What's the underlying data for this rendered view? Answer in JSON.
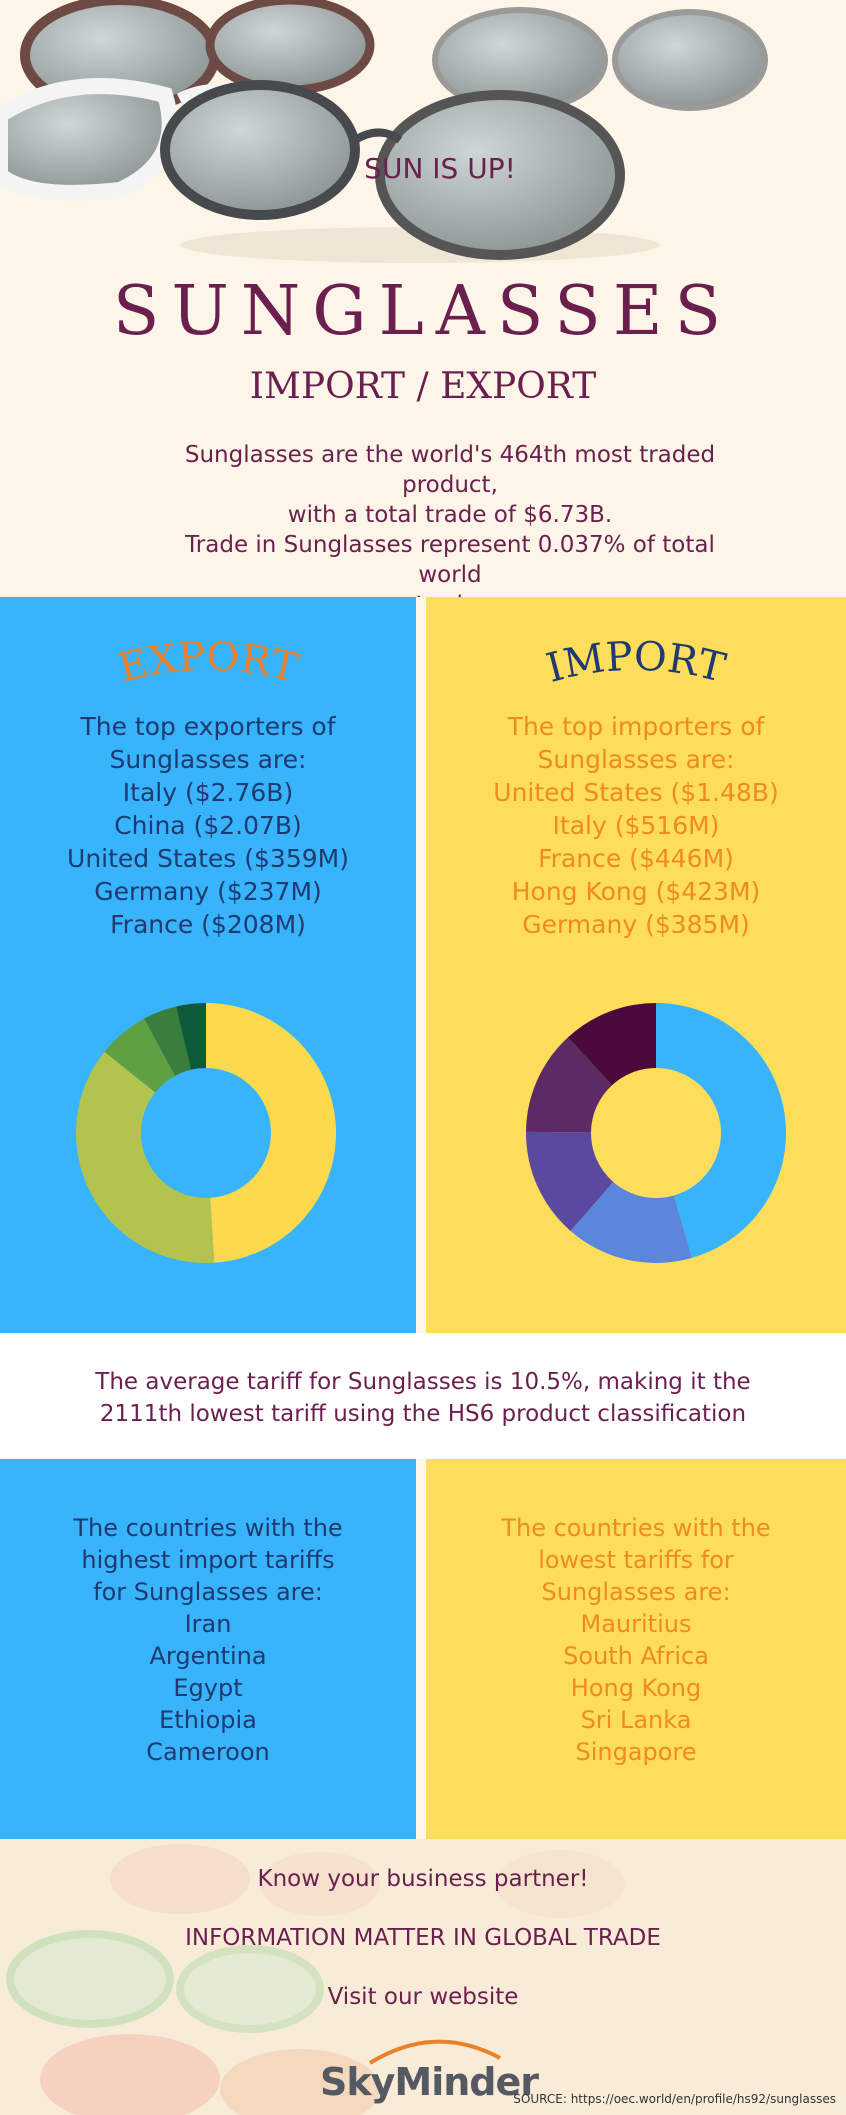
{
  "header": {
    "badge": "SUN IS UP!",
    "title": "SUNGLASSES",
    "subtitle": "IMPORT / EXPORT",
    "intro_lines": [
      "Sunglasses are the world's 464th most traded product,",
      "with a total trade of $6.73B.",
      "Trade in Sunglasses represent 0.037% of total world",
      "trade."
    ]
  },
  "export": {
    "title": "EXPORT",
    "lines": [
      "The top exporters of",
      "Sunglasses  are:",
      "Italy ($2.76B)",
      "China ($2.07B)",
      "United States ($359M)",
      "Germany ($237M)",
      "France ($208M)"
    ]
  },
  "import": {
    "title": "IMPORT",
    "lines": [
      "The top importers of",
      "Sunglasses are:",
      "United States ($1.48B)",
      "Italy ($516M)",
      "France ($446M)",
      "Hong Kong ($423M)",
      "Germany ($385M)"
    ]
  },
  "chart_data": [
    {
      "type": "pie",
      "donut": true,
      "values": [
        2.76,
        2.07,
        0.359,
        0.237,
        0.208
      ],
      "colors": [
        "#fdd94e",
        "#b2c34e",
        "#5fa043",
        "#3a7e3e",
        "#0d5a3a"
      ]
    },
    {
      "type": "pie",
      "donut": true,
      "values": [
        1.48,
        0.516,
        0.446,
        0.423,
        0.385
      ],
      "colors": [
        "#38b4fc",
        "#5c86dc",
        "#5a4a9f",
        "#5d2a66",
        "#4a0a3c"
      ]
    }
  ],
  "tariff": {
    "lines": [
      "The average tariff for Sunglasses is 10.5%, making it the",
      "2111th lowest tariff using the HS6 product classification"
    ]
  },
  "high_tariffs": {
    "lines": [
      "The countries with the",
      "highest import tariffs",
      "for Sunglasses are:",
      "Iran",
      "Argentina",
      "Egypt",
      "Ethiopia",
      "Cameroon"
    ]
  },
  "low_tariffs": {
    "lines": [
      "The countries with the",
      "lowest tariffs for",
      "Sunglasses are:",
      "Mauritius",
      "South Africa",
      "Hong Kong",
      "Sri Lanka",
      "Singapore"
    ]
  },
  "footer": {
    "line1": "Know your business partner!",
    "line2": "INFORMATION MATTER IN GLOBAL TRADE",
    "line3": "Visit our website",
    "logo": "SkyMinder",
    "source": "SOURCE: https://oec.world/en/profile/hs92/sunglasses"
  },
  "colors": {
    "cream": "#fdf6e8",
    "blue": "#38b4fc",
    "yellow": "#fedd5a",
    "plum": "#6b1f4e",
    "navy": "#1f3a70",
    "orange": "#f08a24"
  }
}
